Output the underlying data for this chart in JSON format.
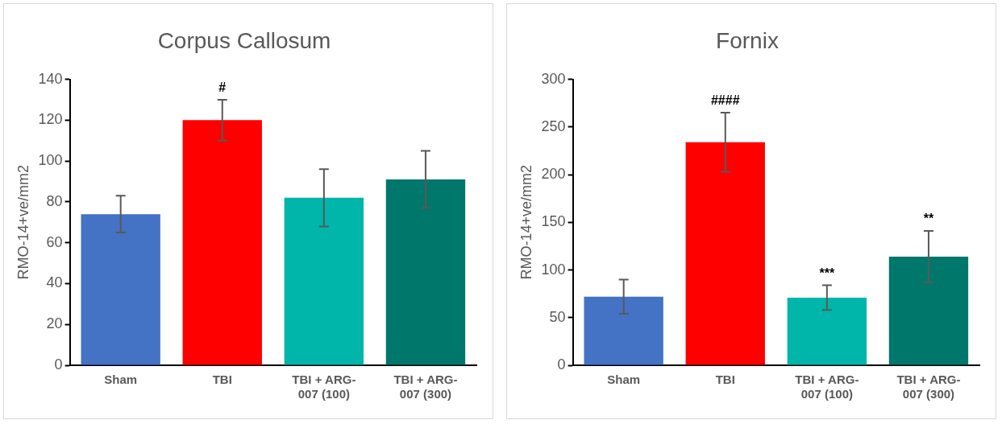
{
  "chart_data": [
    {
      "type": "bar",
      "title": "Corpus Callosum",
      "ylabel": "RMO-14+ve/mm2",
      "categories": [
        "Sham",
        "TBI",
        "TBI + ARG-007 (100)",
        "TBI + ARG-007 (300)"
      ],
      "values": [
        74,
        120,
        82,
        91
      ],
      "errors": [
        9,
        10,
        14,
        14
      ],
      "colors": [
        "#4472c4",
        "#ff0000",
        "#00b5a9",
        "#00776b"
      ],
      "ylim": [
        0,
        140
      ],
      "yticks": [
        0,
        20,
        40,
        60,
        80,
        100,
        120,
        140
      ],
      "grid": false,
      "legend": false,
      "value_labels": [
        null,
        "#",
        null,
        null
      ]
    },
    {
      "type": "bar",
      "title": "Fornix",
      "ylabel": "RMO-14+ve/mm2",
      "categories": [
        "Sham",
        "TBI",
        "TBI + ARG-007 (100)",
        "TBI + ARG-007 (300)"
      ],
      "values": [
        72,
        234,
        71,
        114
      ],
      "errors": [
        18,
        31,
        13,
        27
      ],
      "colors": [
        "#4472c4",
        "#ff0000",
        "#00b5a9",
        "#00776b"
      ],
      "ylim": [
        0,
        300
      ],
      "yticks": [
        0,
        50,
        100,
        150,
        200,
        250,
        300
      ],
      "grid": false,
      "legend": false,
      "value_labels": [
        null,
        "####",
        "***",
        "**"
      ]
    }
  ]
}
